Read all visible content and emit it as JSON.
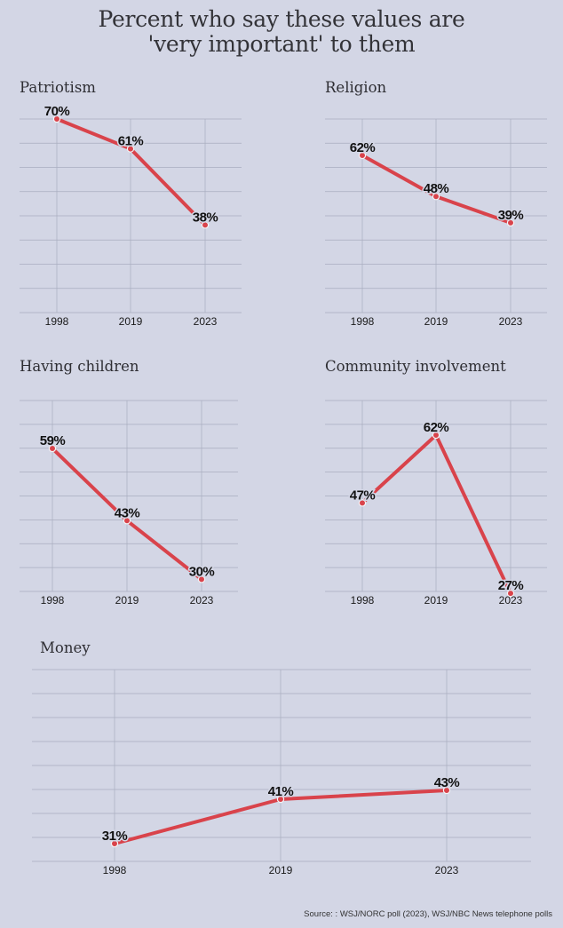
{
  "title_lines": [
    "Percent who say these values are",
    "'very important' to them"
  ],
  "source": "Source: : WSJ/NORC poll (2023), WSJ/NBC News telephone polls",
  "colors": {
    "background": "#d3d6e5",
    "line": "#d9434b",
    "grid": "#a9adbf"
  },
  "chart_data": [
    {
      "type": "line",
      "title": "Patriotism",
      "categories": [
        "1998",
        "2019",
        "2023"
      ],
      "values": [
        70,
        61,
        38
      ],
      "labels": [
        "70%",
        "61%",
        "38%"
      ],
      "grid": true
    },
    {
      "type": "line",
      "title": "Religion",
      "categories": [
        "1998",
        "2019",
        "2023"
      ],
      "values": [
        62,
        48,
        39
      ],
      "labels": [
        "62%",
        "48%",
        "39%"
      ],
      "grid": true
    },
    {
      "type": "line",
      "title": "Having children",
      "categories": [
        "1998",
        "2019",
        "2023"
      ],
      "values": [
        59,
        43,
        30
      ],
      "labels": [
        "59%",
        "43%",
        "30%"
      ],
      "grid": true
    },
    {
      "type": "line",
      "title": "Community involvement",
      "categories": [
        "1998",
        "2019",
        "2023"
      ],
      "values": [
        47,
        62,
        27
      ],
      "labels": [
        "47%",
        "62%",
        "27%"
      ],
      "grid": true
    },
    {
      "type": "line",
      "title": "Money",
      "categories": [
        "1998",
        "2019",
        "2023"
      ],
      "values": [
        31,
        41,
        43
      ],
      "labels": [
        "31%",
        "41%",
        "43%"
      ],
      "grid": true
    }
  ]
}
